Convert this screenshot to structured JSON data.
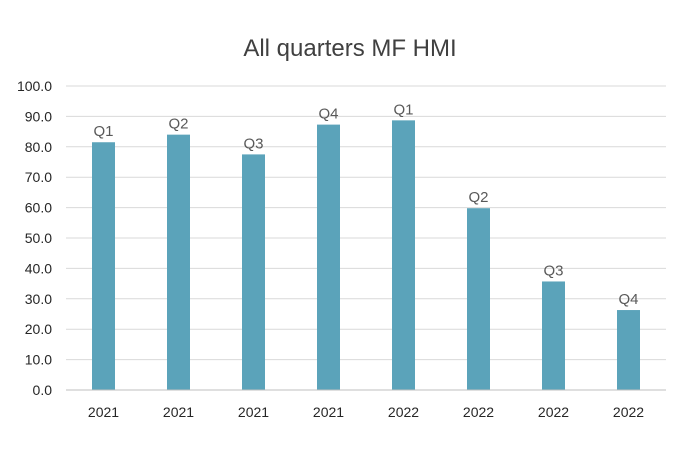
{
  "chart_data": {
    "type": "bar",
    "title": "All quarters MF HMI",
    "xlabel": "",
    "ylabel": "",
    "categories": [
      "2021",
      "2021",
      "2021",
      "2021",
      "2022",
      "2022",
      "2022",
      "2022"
    ],
    "data_labels": [
      "Q1",
      "Q2",
      "Q3",
      "Q4",
      "Q1",
      "Q2",
      "Q3",
      "Q4"
    ],
    "values": [
      81.5,
      84.0,
      77.5,
      87.3,
      88.7,
      59.8,
      35.7,
      26.3
    ],
    "ylim": [
      0,
      100
    ],
    "yticks": [
      "0.0",
      "10.0",
      "20.0",
      "30.0",
      "40.0",
      "50.0",
      "60.0",
      "70.0",
      "80.0",
      "90.0",
      "100.0"
    ],
    "grid": true,
    "legend": "none",
    "bar_color": "#5BA3BA"
  }
}
